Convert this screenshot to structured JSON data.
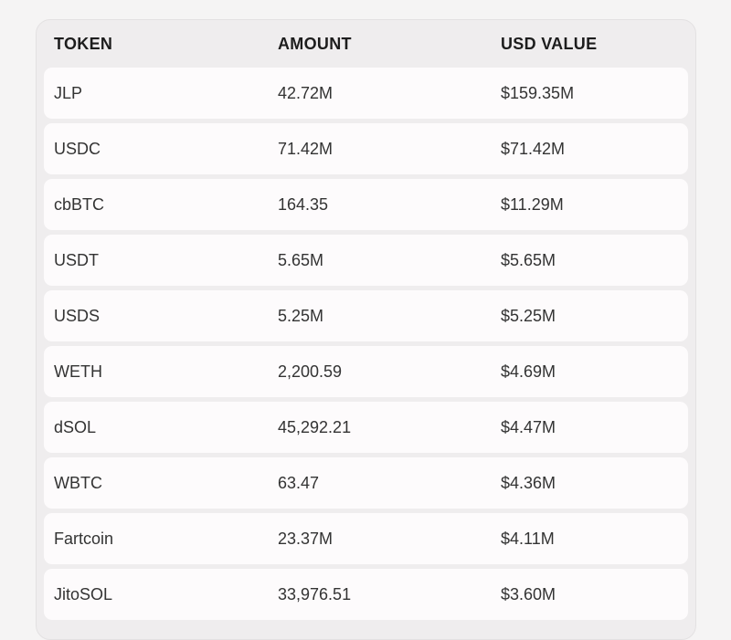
{
  "table": {
    "columns": [
      {
        "label": "TOKEN"
      },
      {
        "label": "AMOUNT"
      },
      {
        "label": "USD VALUE"
      }
    ],
    "rows": [
      {
        "token": "JLP",
        "amount": "42.72M",
        "usd_value": "$159.35M"
      },
      {
        "token": "USDC",
        "amount": "71.42M",
        "usd_value": "$71.42M"
      },
      {
        "token": "cbBTC",
        "amount": "164.35",
        "usd_value": "$11.29M"
      },
      {
        "token": "USDT",
        "amount": "5.65M",
        "usd_value": "$5.65M"
      },
      {
        "token": "USDS",
        "amount": "5.25M",
        "usd_value": "$5.25M"
      },
      {
        "token": "WETH",
        "amount": "2,200.59",
        "usd_value": "$4.69M"
      },
      {
        "token": "dSOL",
        "amount": "45,292.21",
        "usd_value": "$4.47M"
      },
      {
        "token": "WBTC",
        "amount": "63.47",
        "usd_value": "$4.36M"
      },
      {
        "token": "Fartcoin",
        "amount": "23.37M",
        "usd_value": "$4.11M"
      },
      {
        "token": "JitoSOL",
        "amount": "33,976.51",
        "usd_value": "$3.60M"
      }
    ]
  },
  "colors": {
    "page_background": "#f5f4f4",
    "panel_background": "#efedee",
    "panel_border": "#e3e1e2",
    "row_background": "#fdfbfc",
    "header_text": "#1d1d1d",
    "row_text": "#333333"
  }
}
